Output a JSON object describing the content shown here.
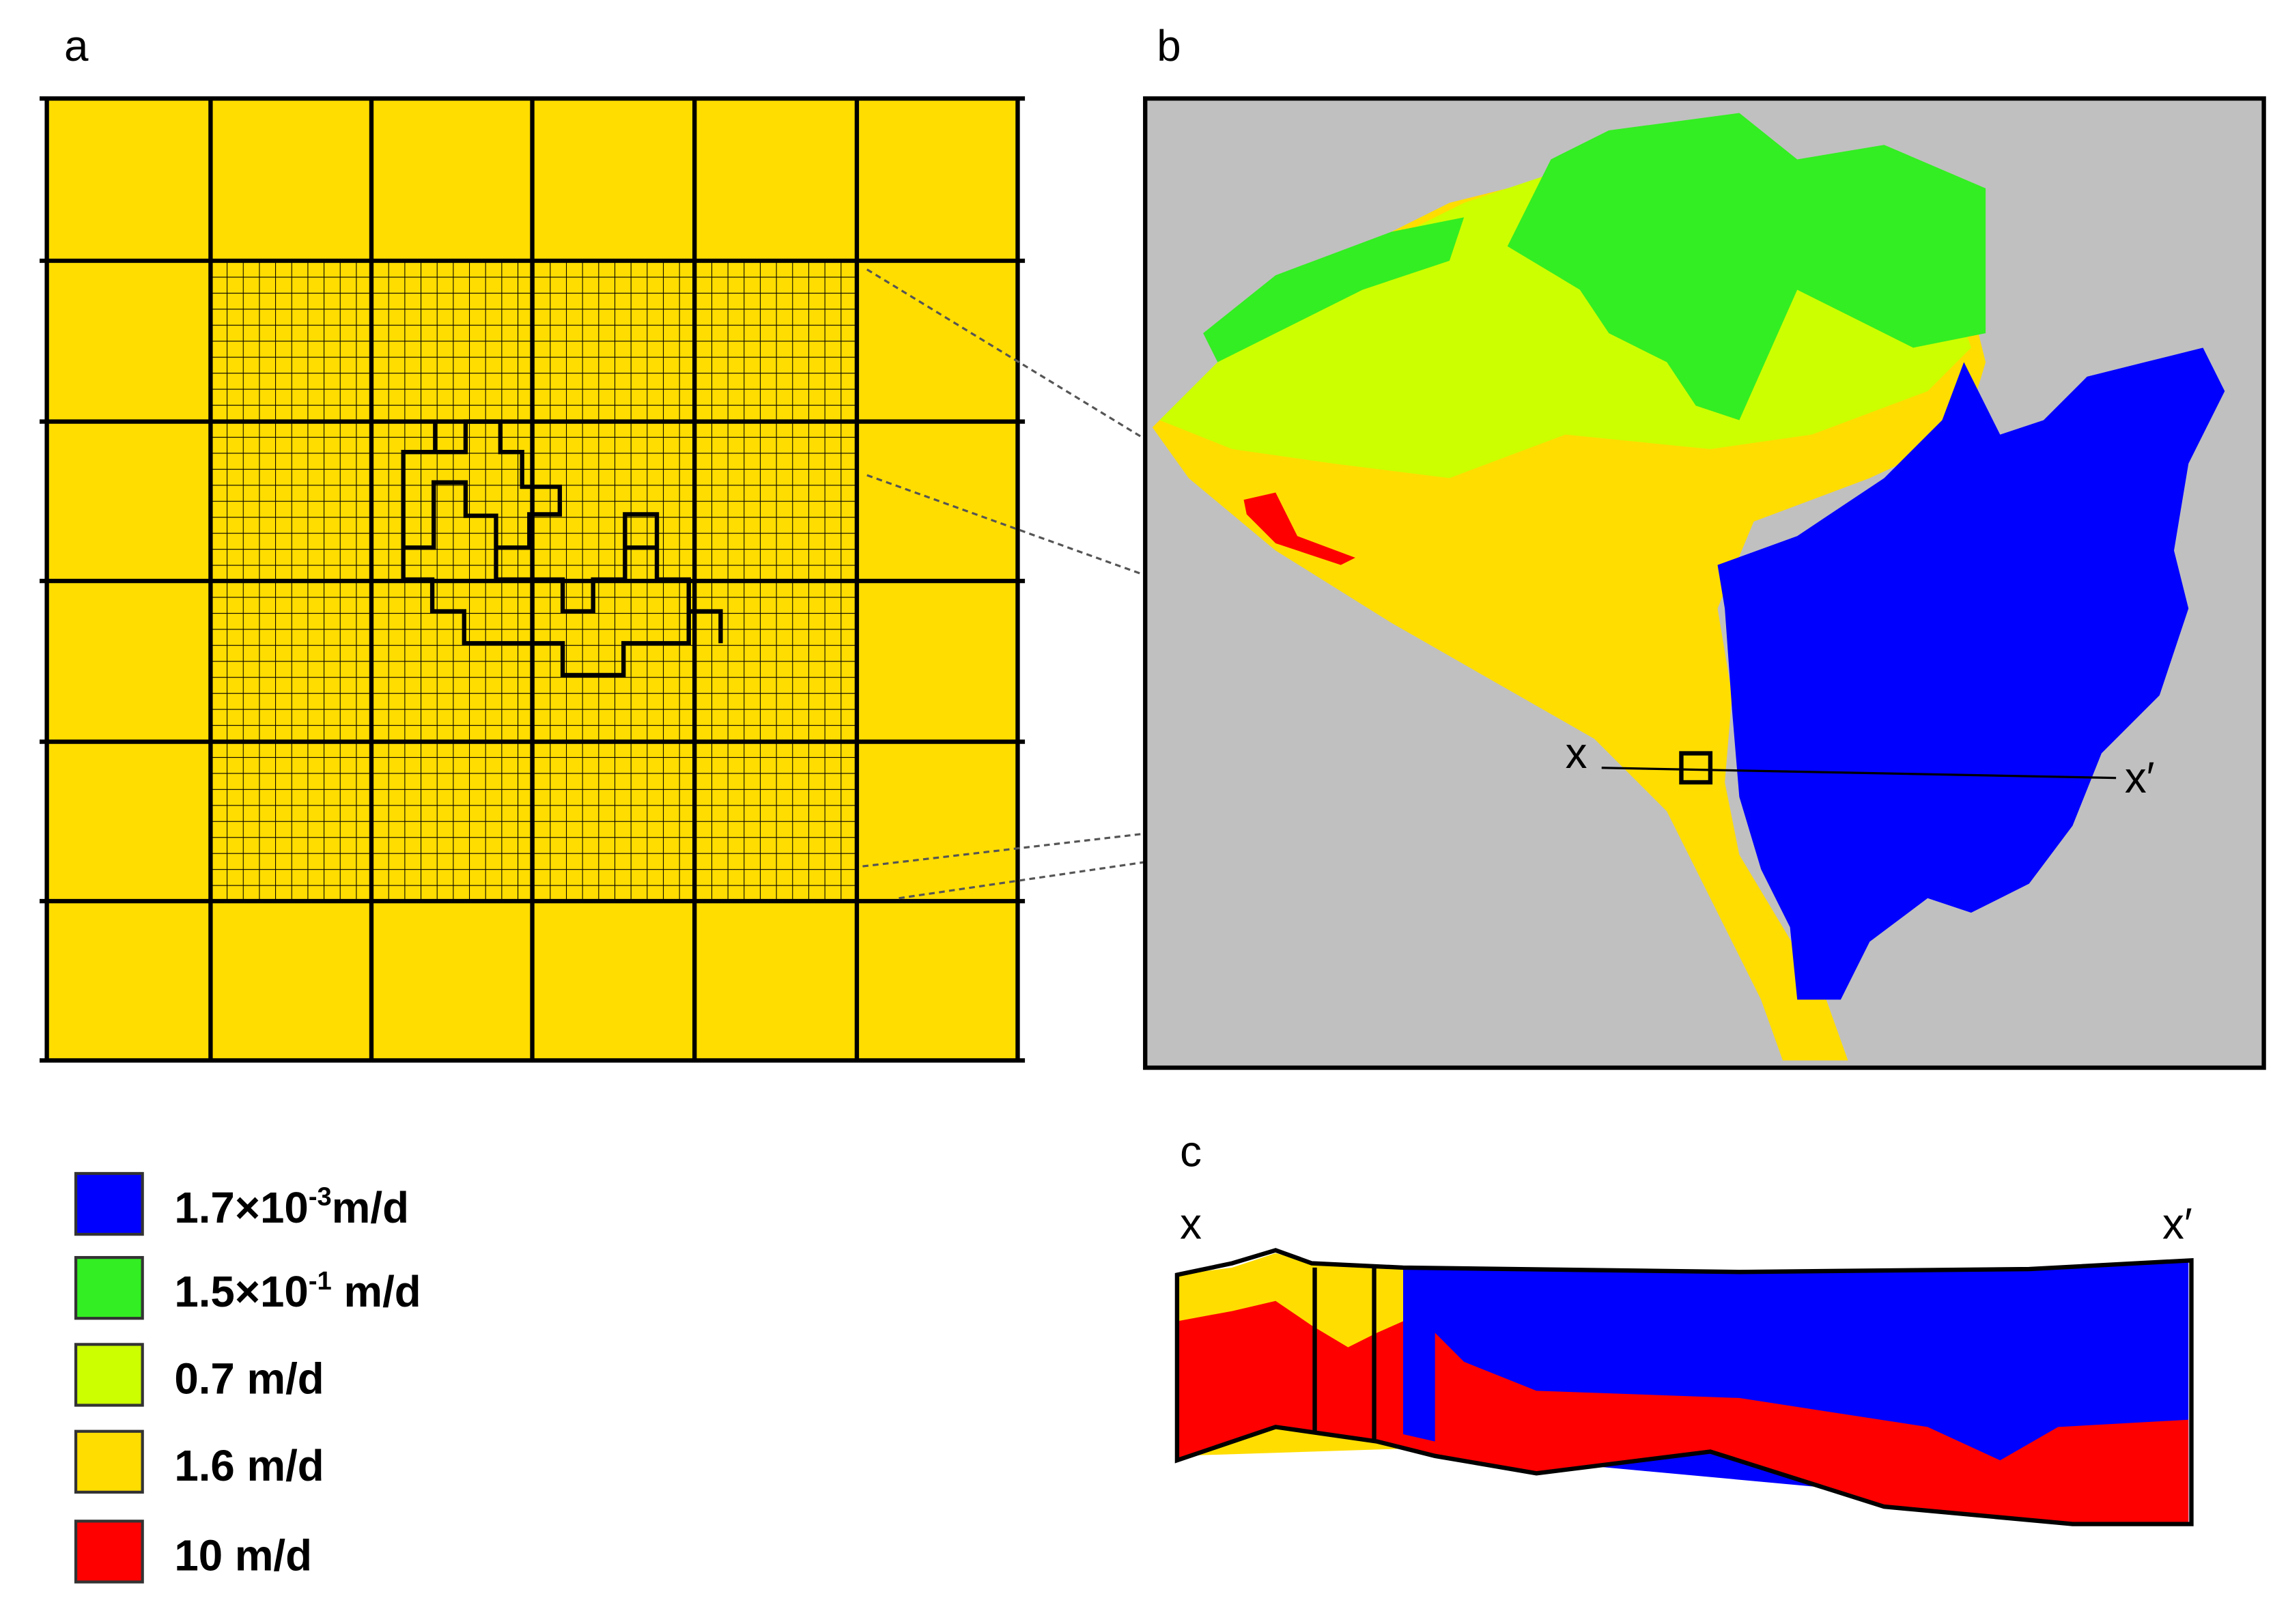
{
  "panels": {
    "a": "a",
    "b": "b",
    "c": "c"
  },
  "section": {
    "start": "x",
    "end": "x′"
  },
  "legend": [
    {
      "color": "#0000ff",
      "text": "1.7×10",
      "sup": "-3",
      "unit": "m/d"
    },
    {
      "color": "#33ee22",
      "text": "1.5×10",
      "sup": "-1",
      "unit": " m/d"
    },
    {
      "color": "#ccff00",
      "text": "0.7 m/d"
    },
    {
      "color": "#ffdd00",
      "text": "1.6 m/d"
    },
    {
      "color": "#ff0000",
      "text": "10 m/d"
    }
  ]
}
